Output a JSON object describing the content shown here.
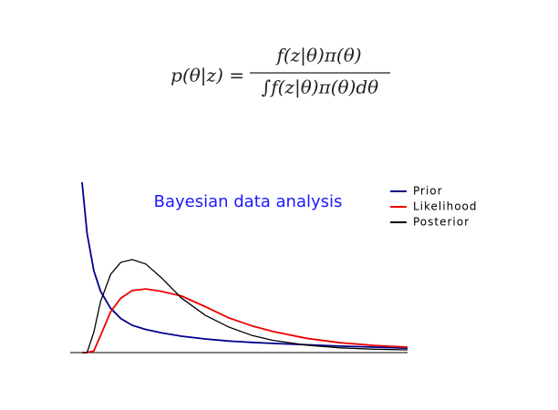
{
  "formula": {
    "lhs": "p(θ|z) =",
    "numerator": "f(z|θ)π(θ)",
    "denominator": "∫f(z|θ)π(θ)dθ"
  },
  "chart_data": {
    "type": "line",
    "title": "Bayesian data analysis",
    "x": [
      0.35,
      0.5,
      0.7,
      0.9,
      1.2,
      1.5,
      1.84,
      2.24,
      2.7,
      3.3,
      4,
      4.7,
      5.4,
      6,
      7,
      8,
      9,
      10
    ],
    "xlim": [
      0,
      10
    ],
    "ylim": [
      0,
      5
    ],
    "series": [
      {
        "name": "Prior",
        "color": "#00008b",
        "values": [
          5.0,
          3.5,
          2.4,
          1.8,
          1.3,
          1.0,
          0.8,
          0.68,
          0.58,
          0.48,
          0.4,
          0.34,
          0.3,
          0.27,
          0.23,
          0.19,
          0.16,
          0.13
        ]
      },
      {
        "name": "Likelihood",
        "color": "#ee0000",
        "values": [
          0,
          0,
          0.05,
          0.5,
          1.2,
          1.6,
          1.82,
          1.87,
          1.8,
          1.66,
          1.35,
          1.02,
          0.78,
          0.62,
          0.42,
          0.29,
          0.21,
          0.16
        ]
      },
      {
        "name": "Posterior",
        "color": "#000000",
        "values": [
          0,
          0,
          0.6,
          1.5,
          2.3,
          2.65,
          2.73,
          2.6,
          2.2,
          1.6,
          1.1,
          0.75,
          0.5,
          0.36,
          0.22,
          0.14,
          0.1,
          0.08
        ]
      }
    ]
  }
}
